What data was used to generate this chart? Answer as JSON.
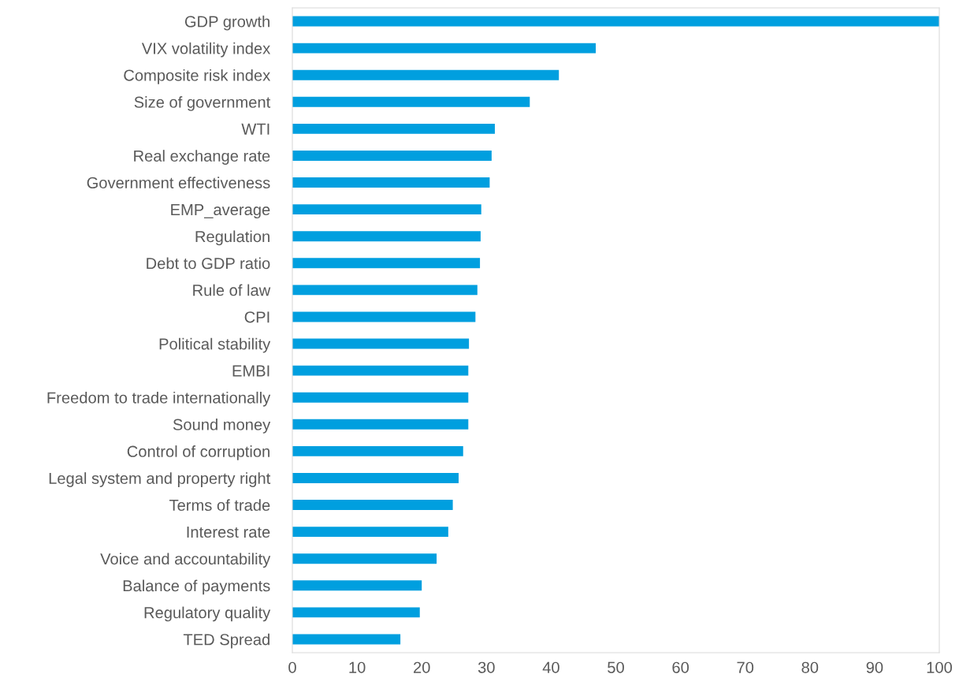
{
  "chart_data": {
    "type": "bar",
    "orientation": "horizontal",
    "color": "#009fdf",
    "categories": [
      "GDP growth",
      "VIX volatility index",
      "Composite risk index",
      "Size of government",
      "WTI",
      "Real exchange rate",
      "Government effectiveness",
      "EMP_average",
      "Regulation",
      "Debt to GDP ratio",
      "Rule of law",
      "CPI",
      "Political stability",
      "EMBI",
      "Freedom to trade internationally",
      "Sound money",
      "Control of corruption",
      "Legal system and property right",
      "Terms of trade",
      "Interest rate",
      "Voice and accountability",
      "Balance of payments",
      "Regulatory quality",
      "TED Spread"
    ],
    "values": [
      100,
      46.9,
      41.2,
      36.7,
      31.3,
      30.8,
      30.5,
      29.2,
      29.1,
      29.0,
      28.6,
      28.3,
      27.3,
      27.2,
      27.2,
      27.2,
      26.4,
      25.7,
      24.8,
      24.1,
      22.3,
      20.0,
      19.7,
      16.7
    ],
    "xlim": [
      0,
      100
    ],
    "xticks": [
      0,
      10,
      20,
      30,
      40,
      50,
      60,
      70,
      80,
      90,
      100
    ],
    "grid": false,
    "legend": false
  }
}
